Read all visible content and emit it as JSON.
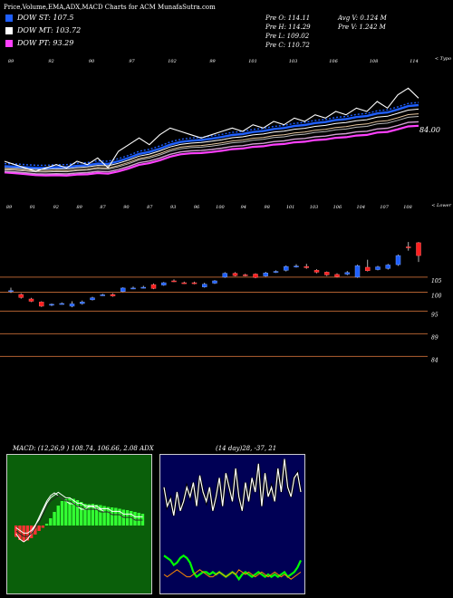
{
  "header": {
    "title": "Price,Volume,EMA,ADX,MACD Charts for ACM MunafaSutra.com"
  },
  "legend": [
    {
      "label": "DOW ST: 107.5",
      "color": "#1f5fff"
    },
    {
      "label": "DOW MT: 103.72",
      "color": "#ffffff"
    },
    {
      "label": "DOW PT: 93.29",
      "color": "#ff40ff"
    }
  ],
  "stats": {
    "open": "Pre O: 114.11",
    "high": "Pre H: 114.29",
    "low": "Pre L: 109.02",
    "close": "Pre C: 110.72",
    "avg_volume": "Avg V: 0.124 M",
    "volume": "Pre V: 1.242 M"
  },
  "upper_label": "< Typo",
  "lower_label": "< Lower",
  "macd_header": "MACD: (12,26,9 ) 108.74, 106.66, 2.08 ADX",
  "adx_header": "(14 day)28, -37, 21",
  "colors": {
    "st": "#1f5fff",
    "mt": "#ffffff",
    "pt": "#ff40ff",
    "up_candle": "#1f5fff",
    "down_candle": "#ff2020",
    "level_line": "#b06030",
    "macd_bg": "#0a5f0a",
    "adx_bg": "#000055",
    "macd_pos": "#33ff33",
    "macd_neg": "#ff3333",
    "adx_plus": "#00ff00",
    "adx_minus": "#ff8c00"
  },
  "chart_data": [
    {
      "type": "line",
      "panel": "upper",
      "top_tick_labels": [
        "89",
        "92",
        "90",
        "97",
        "102",
        "99",
        "101",
        "103",
        "106",
        "108",
        "114"
      ],
      "series": [
        {
          "name": "",
          "values": [
            92,
            91,
            90,
            89,
            90,
            91,
            90,
            92,
            91,
            93,
            90,
            95,
            97,
            99,
            97,
            100,
            102,
            101,
            100,
            99,
            100,
            101,
            102,
            101,
            103,
            102,
            104,
            103,
            105,
            104,
            106,
            105,
            107,
            106,
            108,
            107,
            110,
            108,
            112,
            114,
            111
          ]
        },
        {
          "name": "",
          "values": [
            90.5,
            90.4,
            90.2,
            90.0,
            90.0,
            90.2,
            90.2,
            90.6,
            90.8,
            91.3,
            91.2,
            92.0,
            93.0,
            94.2,
            94.8,
            95.8,
            97.0,
            97.8,
            98.2,
            98.4,
            98.8,
            99.3,
            99.9,
            100.2,
            100.8,
            101.1,
            101.7,
            102.0,
            102.6,
            102.9,
            103.5,
            103.8,
            104.4,
            104.7,
            105.3,
            105.6,
            106.4,
            106.7,
            107.6,
            108.6,
            108.9
          ]
        }
      ],
      "annotation": "84.00"
    },
    {
      "type": "bar",
      "panel": "lower",
      "subtype": "candlestick",
      "top_tick_labels": [
        "89",
        "91",
        "92",
        "89",
        "87",
        "90",
        "87",
        "93",
        "96",
        "100",
        "94",
        "98",
        "101",
        "103",
        "106",
        "104",
        "107",
        "108"
      ],
      "right_axis_labels": [
        "105",
        "100",
        "95",
        "89",
        "84"
      ],
      "level_values": [
        105,
        101,
        96,
        90,
        84
      ],
      "ylim": [
        80,
        122
      ],
      "candles": [
        {
          "o": 101.2,
          "c": 101.4,
          "h": 102.2,
          "l": 100.8
        },
        {
          "o": 100.4,
          "c": 99.6,
          "h": 100.7,
          "l": 99.3
        },
        {
          "o": 99.2,
          "c": 98.6,
          "h": 99.5,
          "l": 98.4
        },
        {
          "o": 98.4,
          "c": 97.3,
          "h": 98.6,
          "l": 97.1
        },
        {
          "o": 97.6,
          "c": 97.8,
          "h": 98.0,
          "l": 97.3
        },
        {
          "o": 97.9,
          "c": 98.0,
          "h": 98.3,
          "l": 97.7
        },
        {
          "o": 97.3,
          "c": 97.9,
          "h": 98.6,
          "l": 97.0
        },
        {
          "o": 98.0,
          "c": 98.4,
          "h": 98.8,
          "l": 97.7
        },
        {
          "o": 99.0,
          "c": 99.5,
          "h": 99.8,
          "l": 98.8
        },
        {
          "o": 100.2,
          "c": 100.3,
          "h": 100.6,
          "l": 100.0
        },
        {
          "o": 100.4,
          "c": 100.0,
          "h": 100.7,
          "l": 99.8
        },
        {
          "o": 101.2,
          "c": 102.1,
          "h": 102.3,
          "l": 101.0
        },
        {
          "o": 102.0,
          "c": 102.1,
          "h": 102.5,
          "l": 101.8
        },
        {
          "o": 102.3,
          "c": 102.3,
          "h": 102.7,
          "l": 102.0
        },
        {
          "o": 103.0,
          "c": 102.0,
          "h": 103.3,
          "l": 101.8
        },
        {
          "o": 102.9,
          "c": 103.5,
          "h": 103.7,
          "l": 102.7
        },
        {
          "o": 104.0,
          "c": 103.9,
          "h": 104.4,
          "l": 103.7
        },
        {
          "o": 103.5,
          "c": 103.4,
          "h": 103.8,
          "l": 103.2
        },
        {
          "o": 103.5,
          "c": 103.3,
          "h": 103.8,
          "l": 103.1
        },
        {
          "o": 102.4,
          "c": 103.1,
          "h": 103.5,
          "l": 102.2
        },
        {
          "o": 103.4,
          "c": 104.0,
          "h": 104.2,
          "l": 103.2
        },
        {
          "o": 105.0,
          "c": 106.0,
          "h": 106.3,
          "l": 104.8
        },
        {
          "o": 106.0,
          "c": 105.4,
          "h": 106.3,
          "l": 105.2
        },
        {
          "o": 105.6,
          "c": 105.5,
          "h": 105.9,
          "l": 105.2
        },
        {
          "o": 105.8,
          "c": 104.9,
          "h": 106.0,
          "l": 104.7
        },
        {
          "o": 105.3,
          "c": 106.1,
          "h": 106.4,
          "l": 105.1
        },
        {
          "o": 106.3,
          "c": 106.5,
          "h": 106.8,
          "l": 106.1
        },
        {
          "o": 106.8,
          "c": 107.8,
          "h": 108.1,
          "l": 106.5
        },
        {
          "o": 107.7,
          "c": 107.9,
          "h": 108.4,
          "l": 107.5
        },
        {
          "o": 107.8,
          "c": 107.5,
          "h": 108.5,
          "l": 107.2
        },
        {
          "o": 106.8,
          "c": 106.3,
          "h": 107.1,
          "l": 106.0
        },
        {
          "o": 106.3,
          "c": 105.6,
          "h": 106.5,
          "l": 105.3
        },
        {
          "o": 105.7,
          "c": 105.1,
          "h": 106.0,
          "l": 104.9
        },
        {
          "o": 105.8,
          "c": 106.2,
          "h": 106.6,
          "l": 105.5
        },
        {
          "o": 105.0,
          "c": 108.0,
          "h": 108.3,
          "l": 104.8
        },
        {
          "o": 107.6,
          "c": 106.7,
          "h": 109.6,
          "l": 106.5
        },
        {
          "o": 107.0,
          "c": 107.7,
          "h": 108.0,
          "l": 106.8
        },
        {
          "o": 107.3,
          "c": 108.2,
          "h": 108.5,
          "l": 107.0
        },
        {
          "o": 108.3,
          "c": 110.7,
          "h": 111.0,
          "l": 108.0
        },
        {
          "o": 113.0,
          "c": 112.8,
          "h": 114.3,
          "l": 112.0
        },
        {
          "o": 114.1,
          "c": 110.7,
          "h": 114.3,
          "l": 109.0
        }
      ]
    },
    {
      "type": "bar",
      "panel": "macd",
      "histogram": [
        -2.5,
        -3.2,
        -3.6,
        -3.3,
        -2.8,
        -2.0,
        -1.2,
        -0.5,
        0.4,
        1.6,
        3.0,
        4.4,
        5.4,
        5.8,
        6.0,
        5.9,
        5.6,
        5.2,
        4.8,
        4.7,
        4.8,
        4.6,
        4.5,
        4.3,
        4.1,
        4.0,
        3.9,
        3.7,
        3.5,
        3.4,
        3.2,
        3.0,
        2.8,
        2.6
      ],
      "macd_line": [
        -3,
        -5,
        -6,
        -5,
        -3,
        0,
        3,
        6,
        9,
        11,
        12,
        11,
        10,
        9,
        8,
        8,
        7,
        6,
        6,
        7,
        7,
        6,
        6,
        5,
        5,
        4,
        4,
        4,
        3,
        3,
        3,
        2,
        2,
        2
      ],
      "signal_line": [
        -2,
        -3,
        -4,
        -4,
        -3,
        -1,
        1,
        4,
        7,
        9,
        10,
        11,
        10,
        9,
        9,
        8,
        7,
        7,
        6,
        6,
        6,
        6,
        5,
        5,
        5,
        4,
        4,
        4,
        3,
        3,
        3,
        2,
        2,
        2
      ]
    },
    {
      "type": "line",
      "panel": "adx",
      "series": [
        {
          "name": "",
          "values": [
            30,
            22,
            25,
            18,
            28,
            20,
            24,
            30,
            26,
            32,
            22,
            35,
            28,
            24,
            30,
            20,
            26,
            34,
            22,
            36,
            30,
            24,
            38,
            26,
            20,
            32,
            24,
            34,
            28,
            40,
            22,
            36,
            26,
            30,
            24,
            38,
            28,
            42,
            30,
            26,
            34,
            36,
            28
          ]
        },
        {
          "name": "",
          "values": [
            25,
            24,
            23,
            21,
            22,
            24,
            25,
            24,
            22,
            18,
            16,
            17,
            18,
            18,
            17,
            18,
            17,
            18,
            17,
            16,
            17,
            18,
            17,
            15,
            17,
            18,
            17,
            16,
            17,
            18,
            17,
            16,
            17,
            16,
            17,
            16,
            17,
            18,
            16,
            17,
            18,
            20,
            23
          ]
        },
        {
          "name": "",
          "values": [
            10,
            9,
            10,
            11,
            12,
            11,
            10,
            9,
            9,
            10,
            11,
            12,
            11,
            10,
            9,
            9,
            10,
            11,
            10,
            9,
            10,
            11,
            10,
            12,
            11,
            10,
            11,
            10,
            9,
            10,
            11,
            10,
            9,
            10,
            11,
            10,
            9,
            10,
            9,
            8,
            9,
            10,
            11
          ]
        }
      ]
    }
  ]
}
